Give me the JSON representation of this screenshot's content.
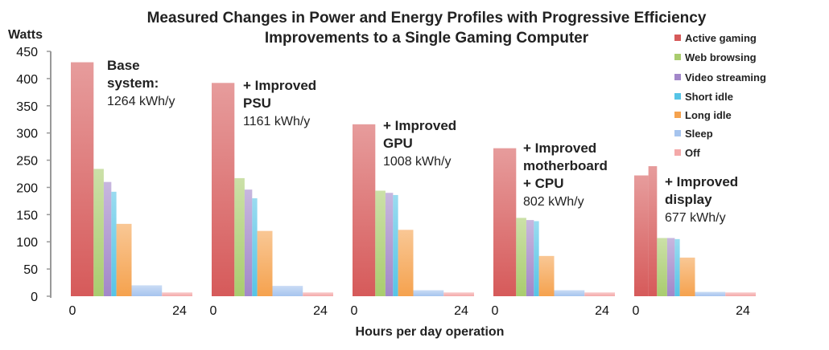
{
  "chart_data": {
    "type": "bar",
    "title": "Measured Changes in Power and Energy Profiles with Progressive Efficiency Improvements to a Single Gaming Computer",
    "title_lines": [
      "Measured Changes in Power and Energy Profiles with Progressive Efficiency",
      "Improvements to a Single Gaming Computer"
    ],
    "ylabel": "Watts",
    "xlabel": "Hours per day operation",
    "ylim": [
      0,
      450
    ],
    "yticks": [
      0,
      50,
      100,
      150,
      200,
      250,
      300,
      350,
      400,
      450
    ],
    "xticks": [
      "0",
      "24"
    ],
    "xlim": [
      0,
      24
    ],
    "legend_position": "top-right",
    "categories": [
      "Active gaming",
      "Web browsing",
      "Video streaming",
      "Short idle",
      "Long idle",
      "Sleep",
      "Off"
    ],
    "colors": [
      "#d65a5a",
      "#a9cc6e",
      "#a287c9",
      "#56c4e6",
      "#f5a24e",
      "#a6c4ee",
      "#f4a9a9"
    ],
    "panels": [
      {
        "label": [
          "Base",
          "system:"
        ],
        "energy": "1264 kWh/y",
        "bars": [
          {
            "cat": 0,
            "hours": 4.5,
            "watts": 430
          },
          {
            "cat": 1,
            "hours": 2,
            "watts": 234
          },
          {
            "cat": 2,
            "hours": 1.5,
            "watts": 210
          },
          {
            "cat": 3,
            "hours": 1,
            "watts": 192
          },
          {
            "cat": 4,
            "hours": 3,
            "watts": 133
          },
          {
            "cat": 5,
            "hours": 6,
            "watts": 20
          },
          {
            "cat": 6,
            "hours": 6,
            "watts": 7
          }
        ]
      },
      {
        "label": [
          "+ Improved",
          "PSU"
        ],
        "energy": "1161 kWh/y",
        "bars": [
          {
            "cat": 0,
            "hours": 4.5,
            "watts": 392
          },
          {
            "cat": 1,
            "hours": 2,
            "watts": 217
          },
          {
            "cat": 2,
            "hours": 1.5,
            "watts": 196
          },
          {
            "cat": 3,
            "hours": 1,
            "watts": 180
          },
          {
            "cat": 4,
            "hours": 3,
            "watts": 120
          },
          {
            "cat": 5,
            "hours": 6,
            "watts": 19
          },
          {
            "cat": 6,
            "hours": 6,
            "watts": 7
          }
        ]
      },
      {
        "label": [
          "+ Improved",
          "GPU"
        ],
        "energy": "1008 kWh/y",
        "bars": [
          {
            "cat": 0,
            "hours": 4.5,
            "watts": 316
          },
          {
            "cat": 1,
            "hours": 2,
            "watts": 194
          },
          {
            "cat": 2,
            "hours": 1.5,
            "watts": 190
          },
          {
            "cat": 3,
            "hours": 1,
            "watts": 186
          },
          {
            "cat": 4,
            "hours": 3,
            "watts": 122
          },
          {
            "cat": 5,
            "hours": 6,
            "watts": 11
          },
          {
            "cat": 6,
            "hours": 6,
            "watts": 7
          }
        ]
      },
      {
        "label": [
          "+ Improved",
          "motherboard",
          "+ CPU"
        ],
        "energy": "802 kWh/y",
        "bars": [
          {
            "cat": 0,
            "hours": 4.5,
            "watts": 272
          },
          {
            "cat": 1,
            "hours": 2,
            "watts": 144
          },
          {
            "cat": 2,
            "hours": 1.5,
            "watts": 140
          },
          {
            "cat": 3,
            "hours": 1,
            "watts": 138
          },
          {
            "cat": 4,
            "hours": 3,
            "watts": 74
          },
          {
            "cat": 5,
            "hours": 6,
            "watts": 11
          },
          {
            "cat": 6,
            "hours": 6,
            "watts": 7
          }
        ]
      },
      {
        "label": [
          "+ Improved",
          "display"
        ],
        "energy": "677 kWh/y",
        "bars": [
          {
            "cat": 0,
            "hours": 2.8,
            "watts": 222
          },
          {
            "cat": 0,
            "hours": 1.7,
            "watts": 239
          },
          {
            "cat": 1,
            "hours": 2,
            "watts": 107
          },
          {
            "cat": 2,
            "hours": 1.5,
            "watts": 107
          },
          {
            "cat": 3,
            "hours": 1,
            "watts": 105
          },
          {
            "cat": 4,
            "hours": 3,
            "watts": 71
          },
          {
            "cat": 5,
            "hours": 6,
            "watts": 8
          },
          {
            "cat": 6,
            "hours": 6,
            "watts": 7
          }
        ]
      }
    ]
  }
}
